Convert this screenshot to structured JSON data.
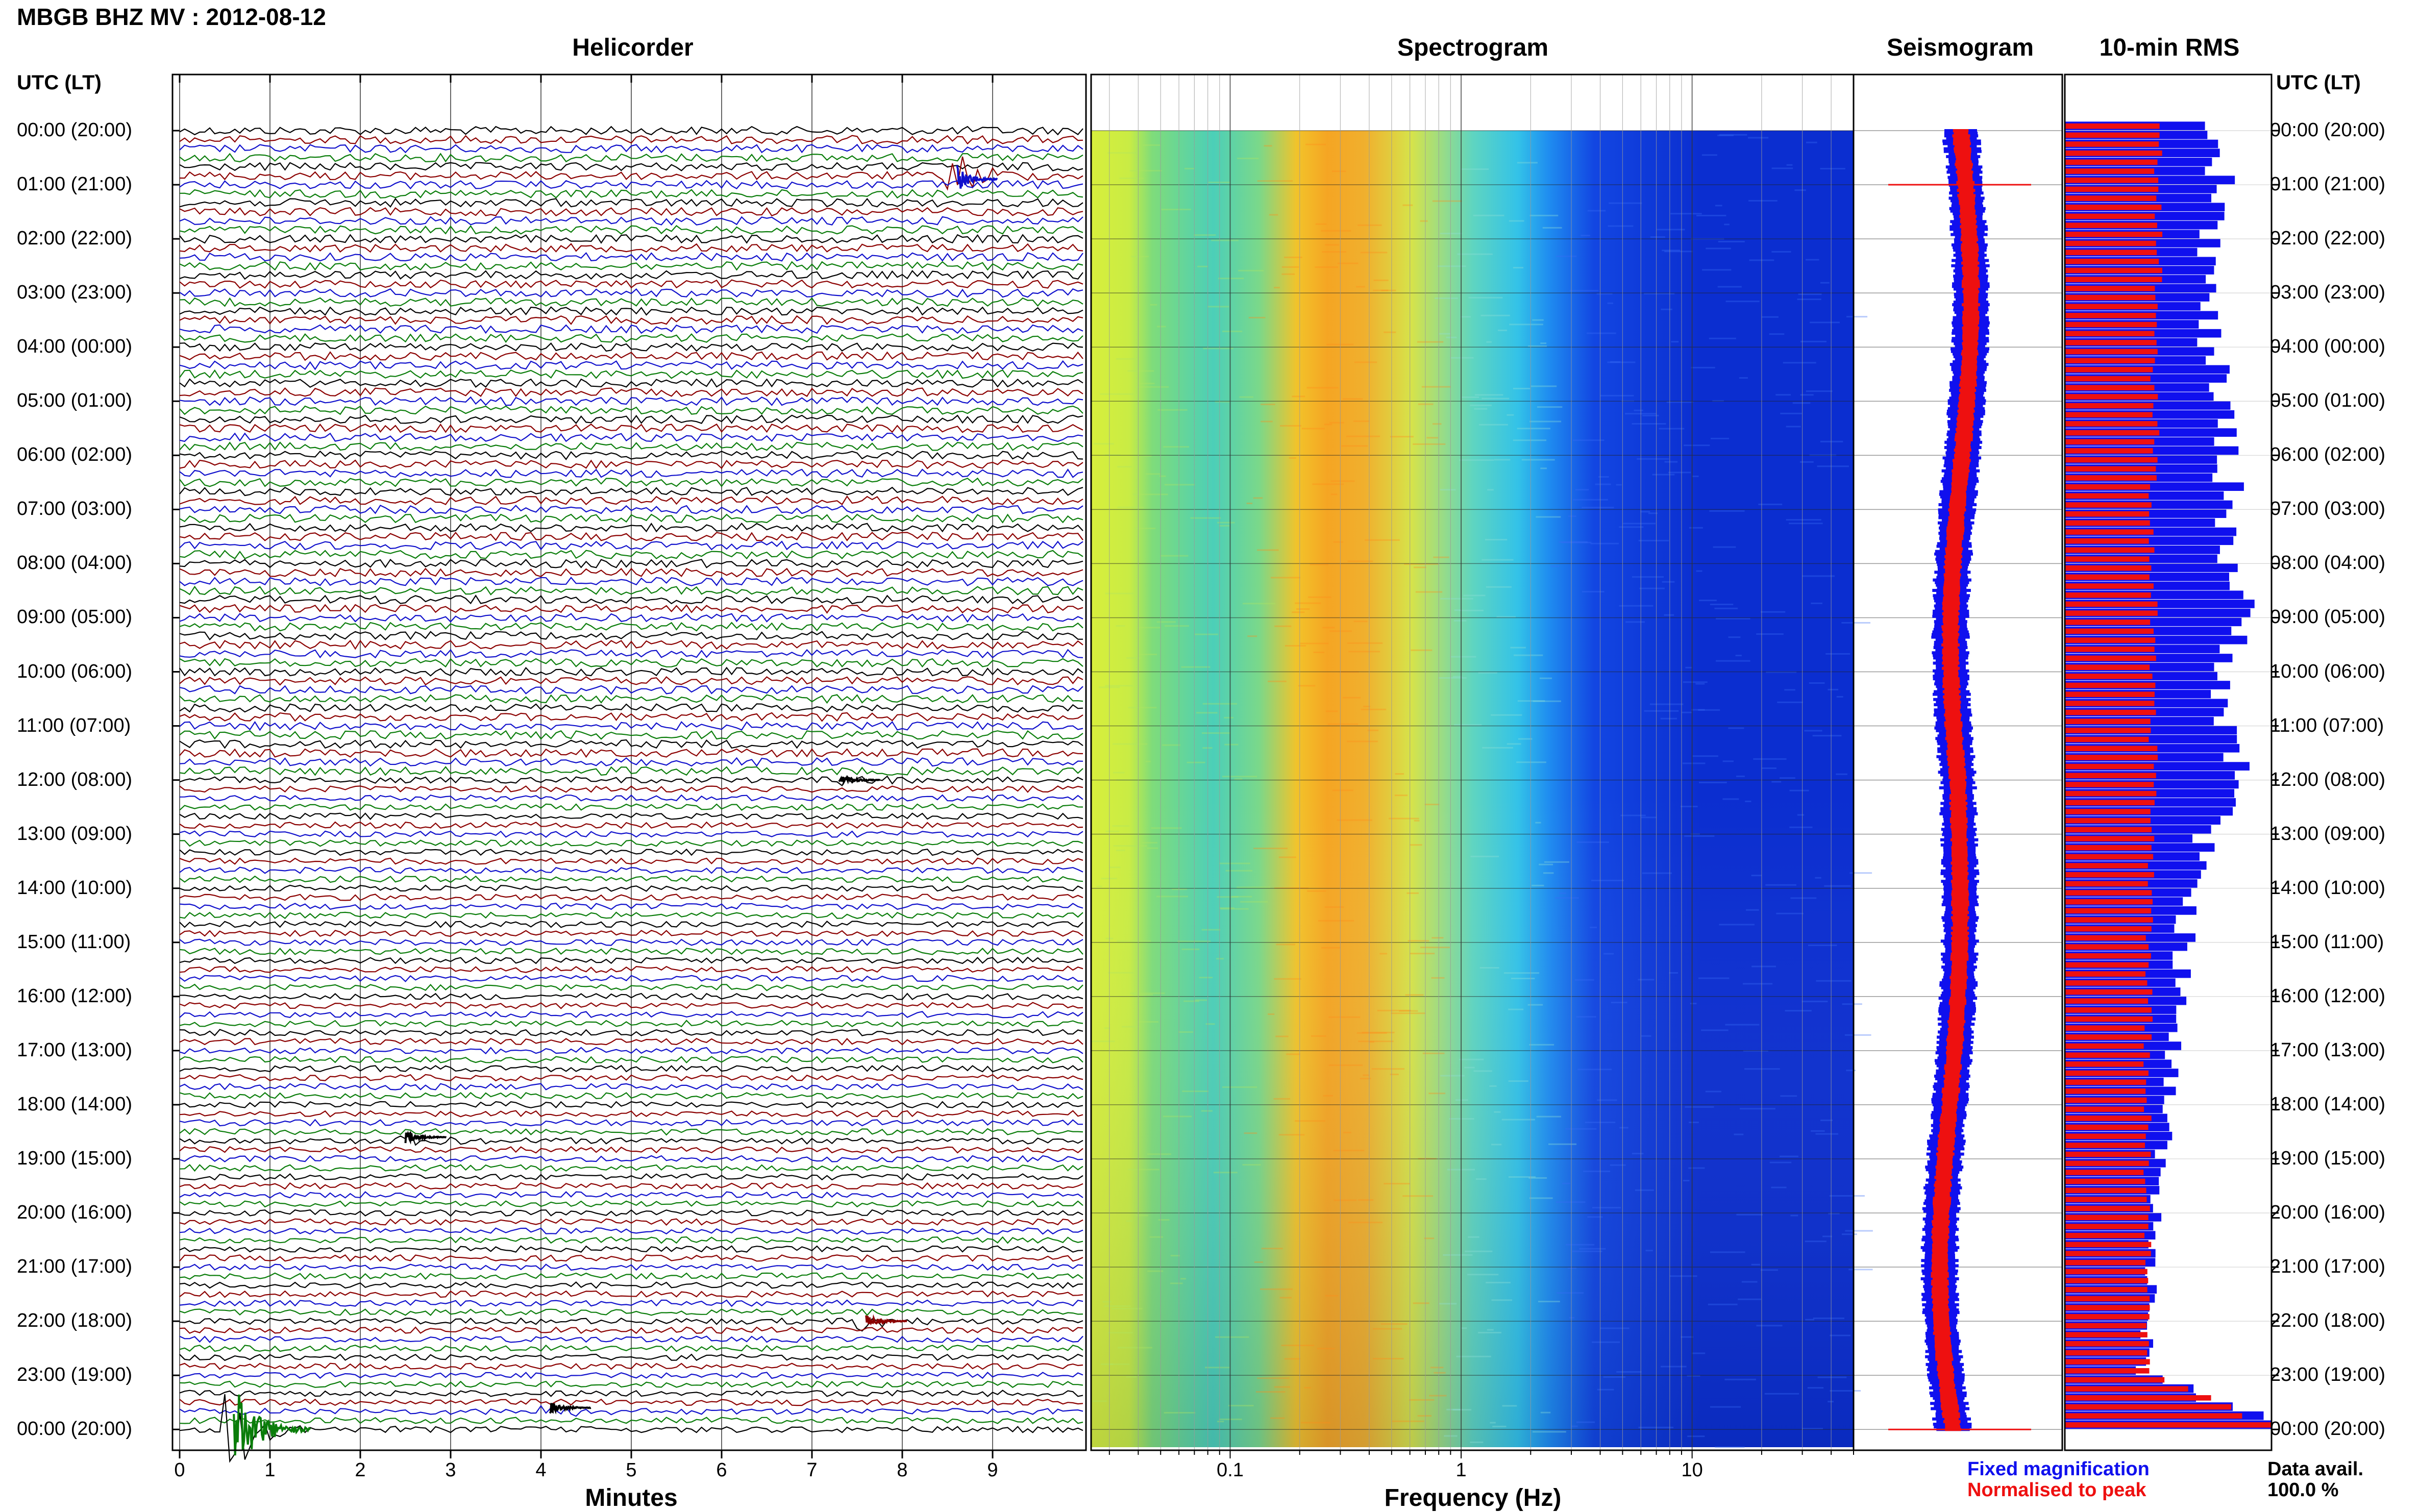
{
  "header": {
    "title": "MBGB BHZ MV : 2012-08-12",
    "utc_label_left": "UTC (LT)",
    "utc_label_right": "UTC (LT)"
  },
  "panels": {
    "helicorder": "Helicorder",
    "spectrogram": "Spectrogram",
    "seismogram": "Seismogram",
    "rms": "10-min RMS"
  },
  "time_labels": [
    "00:00 (20:00)",
    "01:00 (21:00)",
    "02:00 (22:00)",
    "03:00 (23:00)",
    "04:00 (00:00)",
    "05:00 (01:00)",
    "06:00 (02:00)",
    "07:00 (03:00)",
    "08:00 (04:00)",
    "09:00 (05:00)",
    "10:00 (06:00)",
    "11:00 (07:00)",
    "12:00 (08:00)",
    "13:00 (09:00)",
    "14:00 (10:00)",
    "15:00 (11:00)",
    "16:00 (12:00)",
    "17:00 (13:00)",
    "18:00 (14:00)",
    "19:00 (15:00)",
    "20:00 (16:00)",
    "21:00 (17:00)",
    "22:00 (18:00)",
    "23:00 (19:00)",
    "00:00 (20:00)"
  ],
  "legend": {
    "fixed": "Fixed magnification",
    "normalised": "Normalised to peak"
  },
  "availability": {
    "label": "Data avail.",
    "value": "100.0 %"
  },
  "colors": {
    "trace_cycle": [
      "#000000",
      "#8b0000",
      "#1010cc",
      "#0a7d0a"
    ],
    "fixed": "#1010ee",
    "normalised": "#ee1010"
  },
  "chart_data": [
    {
      "type": "line",
      "name": "helicorder",
      "title": "Helicorder",
      "xlabel": "Minutes",
      "x_ticks": [
        "0",
        "1",
        "2",
        "3",
        "4",
        "5",
        "6",
        "7",
        "8",
        "9"
      ],
      "xlim": [
        0,
        10
      ],
      "rows_per_hour": 6,
      "hours": 24,
      "events": [
        {
          "hour": 0.9,
          "minute": 8.6,
          "color": "#1010cc",
          "amp": 1.0
        },
        {
          "hour": 12.0,
          "minute": 7.3,
          "color": "#000000",
          "amp": 0.4
        },
        {
          "hour": 18.6,
          "minute": 2.5,
          "color": "#000000",
          "amp": 0.4
        },
        {
          "hour": 22.0,
          "minute": 7.6,
          "color": "#8b0000",
          "amp": 0.4
        },
        {
          "hour": 23.6,
          "minute": 4.1,
          "color": "#000000",
          "amp": 0.3
        },
        {
          "hour": 24.0,
          "minute": 0.6,
          "color": "#0a7d0a",
          "amp": 2.5
        }
      ]
    },
    {
      "type": "heatmap",
      "name": "spectrogram",
      "title": "Spectrogram",
      "xlabel": "Frequency (Hz)",
      "x_scale": "log",
      "xlim": [
        0.025,
        50
      ],
      "x_ticks": [
        "0.1",
        "1",
        "10"
      ],
      "x_tick_values": [
        0.1,
        1,
        10
      ],
      "peak_band_hz": [
        0.2,
        0.5
      ]
    },
    {
      "type": "line",
      "name": "seismogram",
      "title": "Seismogram",
      "series": [
        {
          "name": "Fixed magnification",
          "color": "#1010ee"
        },
        {
          "name": "Normalised to peak",
          "color": "#ee1010"
        }
      ]
    },
    {
      "type": "bar",
      "name": "rms",
      "title": "10-min RMS",
      "orientation": "horizontal",
      "series": [
        {
          "name": "Fixed magnification",
          "color": "#1010ee",
          "values_hourly": [
            0.65,
            0.75,
            0.72,
            0.68,
            0.7,
            0.75,
            0.78,
            0.8,
            0.8,
            0.85,
            0.8,
            0.75,
            0.88,
            0.68,
            0.62,
            0.58,
            0.55,
            0.52,
            0.5,
            0.48,
            0.45,
            0.42,
            0.4,
            0.38,
            1.0
          ]
        },
        {
          "name": "Normalised to peak",
          "color": "#ee1010",
          "values_hourly": [
            0.48,
            0.45,
            0.46,
            0.45,
            0.44,
            0.43,
            0.44,
            0.42,
            0.42,
            0.43,
            0.42,
            0.42,
            0.44,
            0.42,
            0.42,
            0.41,
            0.41,
            0.4,
            0.4,
            0.4,
            0.4,
            0.4,
            0.4,
            0.4,
            1.0
          ]
        }
      ]
    }
  ]
}
